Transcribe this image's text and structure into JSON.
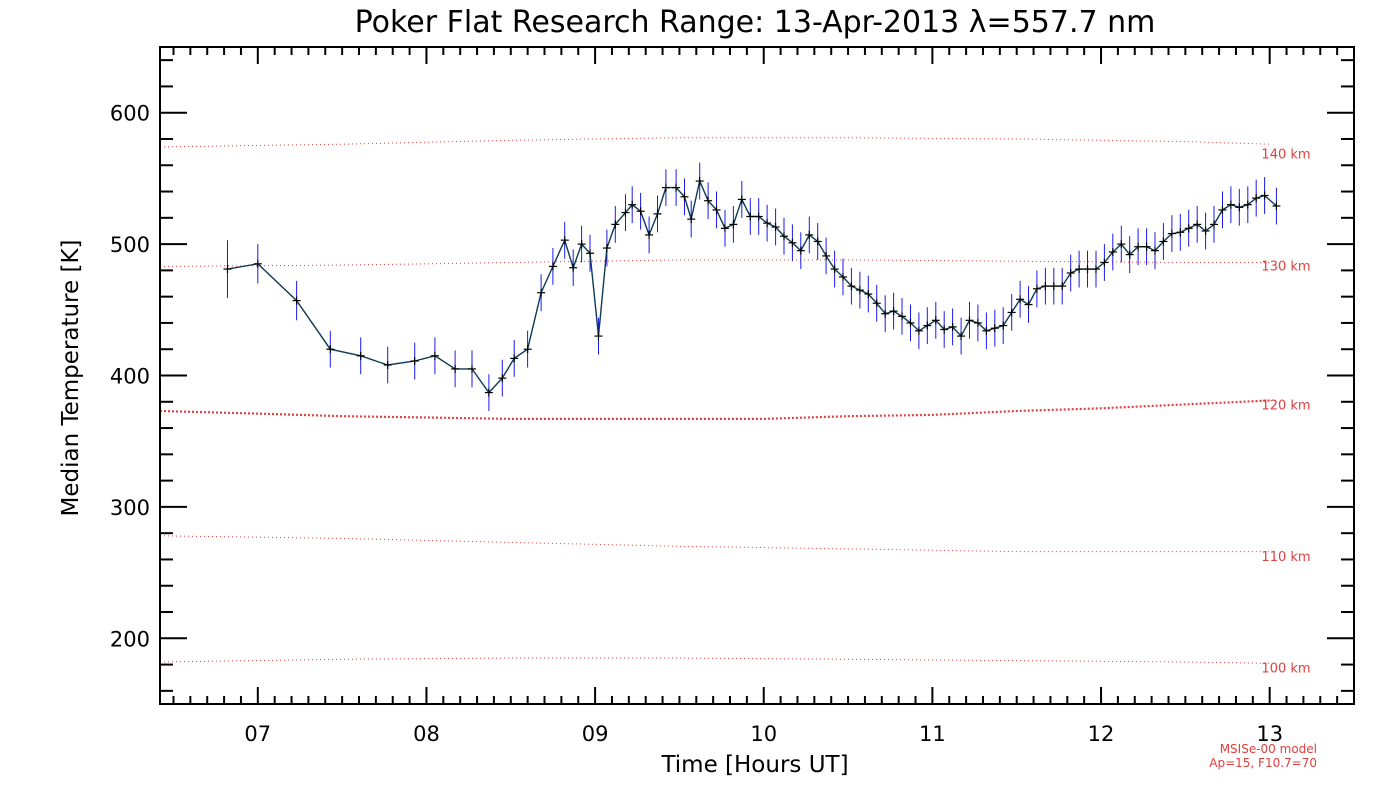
{
  "chart_data": {
    "type": "line",
    "title": "Poker Flat Research Range: 13-Apr-2013 λ=557.7 nm",
    "xlabel": "Time [Hours UT]",
    "ylabel": "Median Temperature [K]",
    "xlim": [
      6.42,
      13.5
    ],
    "ylim": [
      150,
      650
    ],
    "x_ticks": [
      7,
      8,
      9,
      10,
      11,
      12,
      13
    ],
    "x_tick_labels": [
      "07",
      "08",
      "09",
      "10",
      "11",
      "12",
      "13"
    ],
    "y_ticks": [
      200,
      300,
      400,
      500,
      600
    ],
    "y_tick_labels": [
      "200",
      "300",
      "400",
      "500",
      "600"
    ],
    "series": [
      {
        "name": "Median Temperature",
        "color": "#0d3b52",
        "errorbar_color": "#1a1aee",
        "x": [
          6.82,
          7.0,
          7.23,
          7.43,
          7.61,
          7.77,
          7.93,
          8.05,
          8.17,
          8.27,
          8.37,
          8.45,
          8.52,
          8.6,
          8.68,
          8.75,
          8.82,
          8.87,
          8.92,
          8.97,
          9.02,
          9.07,
          9.12,
          9.18,
          9.22,
          9.27,
          9.32,
          9.37,
          9.42,
          9.48,
          9.53,
          9.57,
          9.62,
          9.67,
          9.72,
          9.77,
          9.82,
          9.87,
          9.92,
          9.97,
          10.02,
          10.07,
          10.12,
          10.17,
          10.22,
          10.27,
          10.32,
          10.37,
          10.42,
          10.47,
          10.52,
          10.57,
          10.62,
          10.67,
          10.72,
          10.77,
          10.82,
          10.87,
          10.92,
          10.97,
          11.02,
          11.07,
          11.12,
          11.17,
          11.22,
          11.27,
          11.32,
          11.37,
          11.42,
          11.47,
          11.52,
          11.57,
          11.62,
          11.67,
          11.72,
          11.77,
          11.82,
          11.87,
          11.92,
          11.97,
          12.02,
          12.07,
          12.12,
          12.17,
          12.22,
          12.27,
          12.32,
          12.37,
          12.42,
          12.47,
          12.52,
          12.57,
          12.62,
          12.67,
          12.72,
          12.77,
          12.82,
          12.87,
          12.92,
          12.97,
          13.04
        ],
        "y": [
          481,
          485,
          457,
          420,
          415,
          408,
          411,
          415,
          405,
          405,
          387,
          398,
          413,
          420,
          463,
          483,
          503,
          482,
          500,
          493,
          430,
          497,
          515,
          524,
          530,
          525,
          507,
          523,
          543,
          543,
          536,
          519,
          548,
          533,
          526,
          512,
          515,
          534,
          521,
          521,
          516,
          513,
          506,
          501,
          495,
          507,
          502,
          491,
          481,
          475,
          468,
          465,
          462,
          455,
          447,
          449,
          445,
          440,
          434,
          438,
          442,
          435,
          437,
          430,
          442,
          440,
          434,
          436,
          438,
          448,
          458,
          454,
          466,
          468,
          468,
          468,
          478,
          481,
          481,
          481,
          486,
          494,
          500,
          492,
          498,
          498,
          495,
          502,
          508,
          509,
          512,
          515,
          510,
          515,
          526,
          530,
          528,
          530,
          535,
          537,
          529
        ],
        "err": [
          22,
          15,
          15,
          14,
          14,
          14,
          14,
          14,
          14,
          14,
          14,
          14,
          14,
          14,
          14,
          14,
          14,
          14,
          14,
          14,
          14,
          14,
          14,
          14,
          14,
          14,
          14,
          14,
          14,
          14,
          14,
          14,
          14,
          14,
          14,
          14,
          14,
          14,
          14,
          14,
          14,
          14,
          14,
          14,
          14,
          14,
          14,
          14,
          14,
          14,
          14,
          14,
          14,
          14,
          14,
          14,
          14,
          14,
          14,
          14,
          14,
          14,
          14,
          14,
          14,
          14,
          14,
          14,
          14,
          14,
          14,
          14,
          14,
          14,
          14,
          14,
          14,
          14,
          14,
          14,
          14,
          14,
          14,
          14,
          14,
          14,
          14,
          14,
          14,
          14,
          14,
          14,
          14,
          14,
          14,
          14,
          14,
          14,
          14,
          14,
          14
        ]
      }
    ],
    "reference_lines": [
      {
        "label": "140 km",
        "x": [
          6.42,
          7.5,
          8.5,
          9.5,
          10.5,
          11.5,
          12.5,
          13.0
        ],
        "y": [
          574,
          576,
          579,
          581,
          581,
          580,
          578,
          576
        ],
        "color": "#e04040",
        "weight": "thin"
      },
      {
        "label": "130 km",
        "x": [
          6.42,
          7.5,
          8.5,
          9.5,
          10.5,
          11.5,
          12.5,
          13.0
        ],
        "y": [
          483,
          484,
          486,
          488,
          488,
          487,
          486,
          486
        ],
        "color": "#e04040",
        "weight": "thin"
      },
      {
        "label": "120 km",
        "x": [
          6.42,
          7.0,
          7.5,
          8.0,
          8.5,
          9.0,
          9.5,
          10.0,
          10.5,
          11.0,
          11.5,
          12.0,
          12.5,
          13.0
        ],
        "y": [
          373,
          371,
          369,
          368,
          367,
          367,
          367,
          367,
          369,
          370,
          373,
          375,
          378,
          381
        ],
        "color": "#e04040",
        "weight": "thick"
      },
      {
        "label": "110 km",
        "x": [
          6.42,
          7.5,
          8.5,
          9.5,
          10.5,
          11.5,
          12.5,
          13.0
        ],
        "y": [
          278,
          276,
          273,
          270,
          268,
          266,
          266,
          266
        ],
        "color": "#e04040",
        "weight": "thin"
      },
      {
        "label": "100 km",
        "x": [
          6.42,
          7.5,
          8.5,
          9.5,
          10.5,
          11.5,
          12.5,
          13.0
        ],
        "y": [
          182,
          184,
          185,
          185,
          184,
          183,
          182,
          181
        ],
        "color": "#e04040",
        "weight": "thin"
      }
    ],
    "reference_label_positions": [
      {
        "label": "140 km",
        "y": 565
      },
      {
        "label": "130 km",
        "y": 480
      },
      {
        "label": "120 km",
        "y": 374
      },
      {
        "label": "110 km",
        "y": 259
      },
      {
        "label": "100 km",
        "y": 174
      }
    ],
    "annotations": [
      "MSISe-00 model",
      "Ap=15, F10.7=70"
    ],
    "grid": false,
    "legend": "none"
  }
}
